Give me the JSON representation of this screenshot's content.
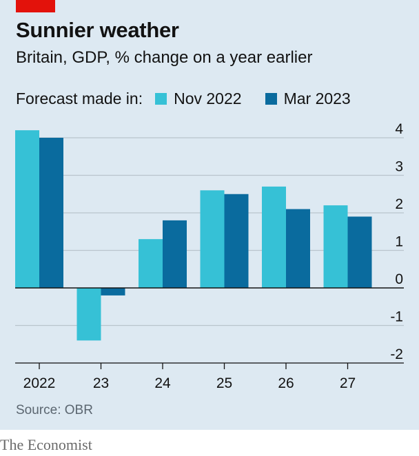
{
  "header": {
    "title": "Sunnier weather",
    "subtitle": "Britain, GDP, % change on a year earlier"
  },
  "legend": {
    "label": "Forecast made in:"
  },
  "footer": {
    "source": "Source: OBR",
    "brand": "The Economist"
  },
  "colors": {
    "background": "#dde9f2",
    "red_tag": "#e3120b",
    "series_nov": "#36c1d6",
    "series_mar": "#0a6b9e",
    "gridline": "#b9c4cc",
    "zero_line": "#121212"
  },
  "chart_data": {
    "type": "bar",
    "categories": [
      "2022",
      "23",
      "24",
      "25",
      "26",
      "27"
    ],
    "series": [
      {
        "name": "Nov 2022",
        "values": [
          4.2,
          -1.4,
          1.3,
          2.6,
          2.7,
          2.2
        ]
      },
      {
        "name": "Mar 2023",
        "values": [
          4.0,
          -0.2,
          1.8,
          2.5,
          2.1,
          1.9
        ]
      }
    ],
    "yticks": [
      "4",
      "3",
      "2",
      "1",
      "0",
      "-1",
      "-2"
    ],
    "ylim": [
      -2,
      4
    ],
    "grid": true,
    "legend_position": "top-left"
  }
}
